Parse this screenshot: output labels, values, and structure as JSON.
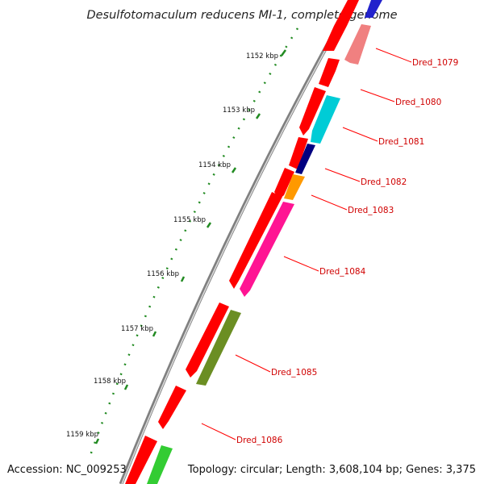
{
  "title": "Desulfotomaculum reducens MI-1, complete genome",
  "accession": "Accession: NC_009253",
  "topology": "Topology: circular; Length: 3,608,104 bp; Genes: 3,375",
  "ticks": [
    "1152 kbp",
    "1153 kbp",
    "1154 kbp",
    "1155 kbp",
    "1156 kbp",
    "1157 kbp",
    "1158 kbp",
    "1159 kbp"
  ],
  "genes": [
    "Dred_1079",
    "Dred_1080",
    "Dred_1081",
    "Dred_1082",
    "Dred_1083",
    "Dred_1084",
    "Dred_1085",
    "Dred_1086"
  ],
  "colors": {
    "cds": "#ff0000",
    "backbone": "#808080",
    "tick": "#228B22",
    "label": "#d00000",
    "cyan": "#00ccd6",
    "navy": "#000080",
    "orange": "#ff9900",
    "magenta": "#ff1493",
    "olive": "#6b8e23",
    "green": "#33cc33",
    "pink": "#f08080",
    "blue": "#2222cc"
  }
}
